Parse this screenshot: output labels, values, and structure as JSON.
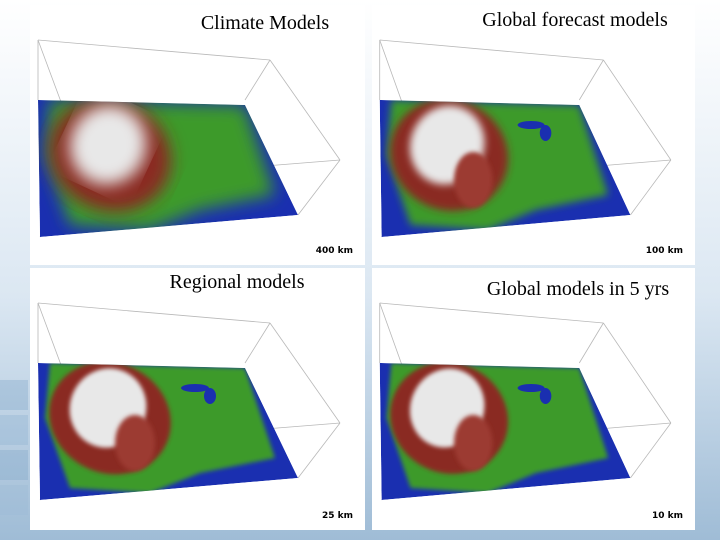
{
  "panels": [
    {
      "title": "Climate Models",
      "scale": "400 km"
    },
    {
      "title": "Global forecast models",
      "scale": "100 km"
    },
    {
      "title": "Regional models",
      "scale": "25 km"
    },
    {
      "title": "Global models in 5 yrs",
      "scale": "10 km"
    }
  ]
}
